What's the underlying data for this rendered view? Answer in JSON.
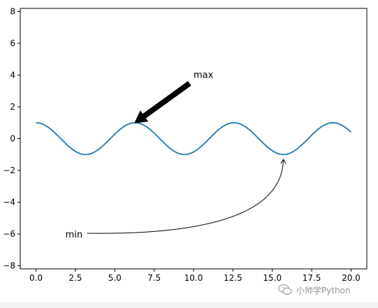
{
  "chart_data": {
    "type": "line",
    "title": "",
    "xlabel": "",
    "ylabel": "",
    "xlim": [
      -1.0,
      21.0
    ],
    "ylim": [
      -8.2,
      8.2
    ],
    "x_ticks": [
      0.0,
      2.5,
      5.0,
      7.5,
      10.0,
      12.5,
      15.0,
      17.5,
      20.0
    ],
    "x_tick_labels": [
      "0.0",
      "2.5",
      "5.0",
      "7.5",
      "10.0",
      "12.5",
      "15.0",
      "17.5",
      "20.0"
    ],
    "y_ticks": [
      -8,
      -6,
      -4,
      -2,
      0,
      2,
      4,
      6,
      8
    ],
    "y_tick_labels": [
      "−8",
      "−6",
      "−4",
      "−2",
      "0",
      "2",
      "4",
      "6",
      "8"
    ],
    "grid": false,
    "series": [
      {
        "function": "cos(x)",
        "x_start": 0.0,
        "x_end": 20.0,
        "color": "#1f77b4"
      }
    ],
    "annotations": [
      {
        "text": "max",
        "xy": [
          6.28,
          1.0
        ],
        "xytext": [
          10.0,
          4.0
        ],
        "arrow": "fancy-thick",
        "color": "#000000"
      },
      {
        "text": "min",
        "xy": [
          15.7,
          -1.0
        ],
        "xytext": [
          2.0,
          -6.0
        ],
        "arrow": "curved-arc",
        "color": "#000000"
      }
    ]
  },
  "watermark": {
    "text": "小帅学Python",
    "icon": "wechat-icon"
  }
}
